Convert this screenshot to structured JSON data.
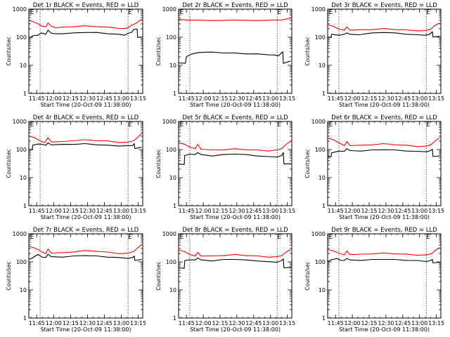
{
  "figure": {
    "xlabel": "Start Time (20-Oct-09 11:38:00)",
    "ylabel": "Counts/sec"
  },
  "chart_data": [
    {
      "type": "line",
      "title": "Det 1r BLACK = Events, RED = LLD",
      "xlabel": "Start Time (20-Oct-09 11:38:00)",
      "ylabel": "Counts/sec",
      "x_ticks": [
        "11:45",
        "12:00",
        "12:15",
        "12:30",
        "12:45",
        "13:00",
        "13:15"
      ],
      "x_tick_values": [
        7,
        22,
        37,
        52,
        67,
        82,
        97
      ],
      "y_ticks": [
        "1",
        "10",
        "100",
        "1000"
      ],
      "ylog": true,
      "ylim": [
        1,
        1000
      ],
      "xlim": [
        0,
        101
      ],
      "dotted_vlines": [
        10,
        88
      ],
      "markers": [
        "E",
        "E"
      ],
      "marker_x": [
        1,
        88
      ],
      "series": [
        {
          "name": "Events",
          "color": "#000000",
          "x": [
            0,
            2.5,
            3,
            8,
            11,
            15,
            17,
            20,
            24,
            30,
            40,
            50,
            60,
            70,
            80,
            85,
            88,
            91,
            93,
            96,
            96.5,
            100
          ],
          "y": [
            100,
            100,
            110,
            120,
            140,
            130,
            175,
            140,
            130,
            135,
            140,
            150,
            145,
            135,
            125,
            120,
            135,
            150,
            185,
            200,
            95,
            105
          ]
        },
        {
          "name": "LLD",
          "color": "#ff0000",
          "x": [
            0,
            3,
            8,
            11,
            15,
            17,
            20,
            24,
            30,
            40,
            50,
            60,
            70,
            80,
            85,
            88,
            91,
            95,
            100
          ],
          "y": [
            400,
            370,
            300,
            260,
            230,
            330,
            240,
            220,
            225,
            240,
            250,
            240,
            225,
            210,
            200,
            220,
            260,
            320,
            420
          ]
        }
      ]
    },
    {
      "type": "line",
      "title": "Det 2r BLACK = Events, RED = LLD",
      "xlabel": "Start Time (20-Oct-09 11:38:00)",
      "ylabel": "Counts/sec",
      "x_ticks": [
        "11:45",
        "12:00",
        "12:15",
        "12:30",
        "12:45",
        "13:00",
        "13:15"
      ],
      "x_tick_values": [
        7,
        22,
        37,
        52,
        67,
        82,
        97
      ],
      "y_ticks": [
        "1",
        "10",
        "100",
        "1000"
      ],
      "ylog": true,
      "ylim": [
        1,
        1000
      ],
      "xlim": [
        0,
        101
      ],
      "dotted_vlines": [
        10,
        88
      ],
      "markers": [
        "E",
        "E"
      ],
      "marker_x": [
        1,
        88
      ],
      "series": [
        {
          "name": "Events",
          "color": "#000000",
          "x": [
            0,
            6,
            7,
            12,
            18,
            24,
            30,
            40,
            50,
            60,
            70,
            80,
            85,
            89,
            93,
            93.5,
            100
          ],
          "y": [
            12,
            12,
            20,
            26,
            28,
            30,
            29,
            28,
            27,
            26,
            25,
            24,
            23,
            22,
            30,
            12,
            14
          ]
        },
        {
          "name": "LLD",
          "color": "#ff0000",
          "x": [
            0,
            8,
            15,
            30,
            50,
            70,
            85,
            92,
            100
          ],
          "y": [
            430,
            410,
            400,
            400,
            400,
            400,
            400,
            420,
            470
          ]
        }
      ]
    },
    {
      "type": "line",
      "title": "Det 3r BLACK = Events, RED = LLD",
      "xlabel": "Start Time (20-Oct-09 11:38:00)",
      "ylabel": "Counts/sec",
      "x_ticks": [
        "11:45",
        "12:00",
        "12:15",
        "12:30",
        "12:45",
        "13:00",
        "13:15"
      ],
      "x_tick_values": [
        7,
        22,
        37,
        52,
        67,
        82,
        97
      ],
      "y_ticks": [
        "1",
        "10",
        "100",
        "1000"
      ],
      "ylog": true,
      "ylim": [
        1,
        1000
      ],
      "xlim": [
        0,
        101
      ],
      "dotted_vlines": [
        10,
        88
      ],
      "markers": [
        "E",
        "E"
      ],
      "marker_x": [
        1,
        88
      ],
      "series": [
        {
          "name": "Events",
          "color": "#000000",
          "x": [
            0,
            3,
            3.5,
            10,
            15,
            17,
            20,
            28,
            40,
            50,
            60,
            70,
            80,
            87,
            91,
            93.5,
            94,
            100
          ],
          "y": [
            100,
            100,
            125,
            120,
            125,
            145,
            125,
            125,
            140,
            150,
            140,
            130,
            120,
            120,
            125,
            160,
            100,
            110
          ]
        },
        {
          "name": "LLD",
          "color": "#ff0000",
          "x": [
            0,
            5,
            10,
            15,
            17,
            20,
            28,
            40,
            50,
            60,
            70,
            80,
            88,
            92,
            96,
            100
          ],
          "y": [
            270,
            250,
            190,
            180,
            230,
            180,
            180,
            190,
            200,
            190,
            180,
            170,
            170,
            200,
            260,
            330
          ]
        }
      ]
    },
    {
      "type": "line",
      "title": "Det 4r BLACK = Events, RED = LLD",
      "xlabel": "Start Time (20-Oct-09 11:38:00)",
      "ylabel": "Counts/sec",
      "x_ticks": [
        "11:45",
        "12:00",
        "12:15",
        "12:30",
        "12:45",
        "13:00",
        "13:15"
      ],
      "x_tick_values": [
        7,
        22,
        37,
        52,
        67,
        82,
        97
      ],
      "y_ticks": [
        "1",
        "10",
        "100",
        "1000"
      ],
      "ylog": true,
      "ylim": [
        1,
        1000
      ],
      "xlim": [
        0,
        101
      ],
      "dotted_vlines": [
        10,
        88
      ],
      "markers": [
        "E",
        "E"
      ],
      "marker_x": [
        1,
        88
      ],
      "series": [
        {
          "name": "Events",
          "color": "#000000",
          "x": [
            0,
            3,
            3.5,
            8,
            12,
            15,
            17,
            20,
            30,
            40,
            50,
            60,
            70,
            80,
            88,
            92,
            93.5,
            94,
            100
          ],
          "y": [
            100,
            100,
            140,
            160,
            150,
            145,
            170,
            150,
            150,
            155,
            160,
            150,
            140,
            135,
            135,
            140,
            160,
            110,
            120
          ]
        },
        {
          "name": "LLD",
          "color": "#ff0000",
          "x": [
            0,
            5,
            10,
            14,
            17,
            20,
            30,
            40,
            50,
            60,
            70,
            80,
            88,
            93,
            97,
            100
          ],
          "y": [
            300,
            270,
            200,
            180,
            260,
            190,
            190,
            210,
            220,
            210,
            200,
            180,
            180,
            210,
            280,
            380
          ]
        }
      ]
    },
    {
      "type": "line",
      "title": "Det 5r BLACK = Events, RED = LLD",
      "xlabel": "Start Time (20-Oct-09 11:38:00)",
      "ylabel": "Counts/sec",
      "x_ticks": [
        "11:45",
        "12:00",
        "12:15",
        "12:30",
        "12:45",
        "13:00",
        "13:15"
      ],
      "x_tick_values": [
        7,
        22,
        37,
        52,
        67,
        82,
        97
      ],
      "y_ticks": [
        "1",
        "10",
        "100",
        "1000"
      ],
      "ylog": true,
      "ylim": [
        1,
        1000
      ],
      "xlim": [
        0,
        101
      ],
      "dotted_vlines": [
        10,
        88
      ],
      "markers": [
        "E",
        "E"
      ],
      "marker_x": [
        1,
        88
      ],
      "series": [
        {
          "name": "Events",
          "color": "#000000",
          "x": [
            0,
            5,
            5.5,
            10,
            15,
            17,
            20,
            30,
            40,
            50,
            60,
            70,
            80,
            88,
            92,
            93.5,
            94,
            100
          ],
          "y": [
            30,
            30,
            60,
            70,
            65,
            80,
            65,
            60,
            65,
            70,
            65,
            60,
            55,
            55,
            60,
            80,
            30,
            32
          ]
        },
        {
          "name": "LLD",
          "color": "#ff0000",
          "x": [
            0,
            5,
            10,
            15,
            17,
            20,
            30,
            40,
            50,
            60,
            70,
            80,
            88,
            92,
            96,
            100
          ],
          "y": [
            170,
            160,
            120,
            110,
            150,
            105,
            95,
            100,
            105,
            100,
            95,
            90,
            95,
            110,
            150,
            200
          ]
        }
      ]
    },
    {
      "type": "line",
      "title": "Det 6r BLACK = Events, RED = LLD",
      "xlabel": "Start Time (20-Oct-09 11:38:00)",
      "ylabel": "Counts/sec",
      "x_ticks": [
        "11:45",
        "12:00",
        "12:15",
        "12:30",
        "12:45",
        "13:00",
        "13:15"
      ],
      "x_tick_values": [
        7,
        22,
        37,
        52,
        67,
        82,
        97
      ],
      "y_ticks": [
        "1",
        "10",
        "100",
        "1000"
      ],
      "ylog": true,
      "ylim": [
        1,
        1000
      ],
      "xlim": [
        0,
        101
      ],
      "dotted_vlines": [
        10,
        88
      ],
      "markers": [
        "E",
        "E"
      ],
      "marker_x": [
        1,
        88
      ],
      "series": [
        {
          "name": "Events",
          "color": "#000000",
          "x": [
            0,
            3,
            3.5,
            10,
            15,
            17,
            20,
            30,
            40,
            50,
            60,
            70,
            80,
            88,
            92,
            93.5,
            94,
            100
          ],
          "y": [
            55,
            55,
            75,
            90,
            85,
            110,
            90,
            90,
            95,
            100,
            95,
            90,
            85,
            85,
            90,
            105,
            55,
            60
          ]
        },
        {
          "name": "LLD",
          "color": "#ff0000",
          "x": [
            0,
            5,
            10,
            15,
            17,
            20,
            30,
            40,
            50,
            60,
            70,
            80,
            88,
            92,
            96,
            100
          ],
          "y": [
            250,
            230,
            170,
            140,
            190,
            140,
            140,
            150,
            160,
            150,
            140,
            130,
            130,
            150,
            200,
            270
          ]
        }
      ]
    },
    {
      "type": "line",
      "title": "Det 7r BLACK = Events, RED = LLD",
      "xlabel": "Start Time (20-Oct-09 11:38:00)",
      "ylabel": "Counts/sec",
      "x_ticks": [
        "11:45",
        "12:00",
        "12:15",
        "12:30",
        "12:45",
        "13:00",
        "13:15"
      ],
      "x_tick_values": [
        7,
        22,
        37,
        52,
        67,
        82,
        97
      ],
      "y_ticks": [
        "1",
        "10",
        "100",
        "1000"
      ],
      "ylog": true,
      "ylim": [
        1,
        1000
      ],
      "xlim": [
        0,
        101
      ],
      "dotted_vlines": [
        10,
        88
      ],
      "markers": [
        "E",
        "E"
      ],
      "marker_x": [
        1,
        88
      ],
      "series": [
        {
          "name": "Events",
          "color": "#000000",
          "x": [
            0,
            3,
            8,
            12,
            15,
            17,
            20,
            30,
            40,
            50,
            60,
            70,
            80,
            88,
            92,
            93.5,
            94,
            100
          ],
          "y": [
            120,
            140,
            180,
            150,
            140,
            190,
            150,
            150,
            160,
            170,
            160,
            150,
            140,
            135,
            140,
            165,
            110,
            125
          ]
        },
        {
          "name": "LLD",
          "color": "#ff0000",
          "x": [
            0,
            5,
            10,
            15,
            17,
            20,
            30,
            40,
            50,
            60,
            70,
            80,
            88,
            93,
            97,
            100
          ],
          "y": [
            350,
            320,
            240,
            200,
            280,
            210,
            210,
            230,
            250,
            240,
            220,
            200,
            200,
            240,
            320,
            420
          ]
        }
      ]
    },
    {
      "type": "line",
      "title": "Det 8r BLACK = Events, RED = LLD",
      "xlabel": "Start Time (20-Oct-09 11:38:00)",
      "ylabel": "Counts/sec",
      "x_ticks": [
        "11:45",
        "12:00",
        "12:15",
        "12:30",
        "12:45",
        "13:00",
        "13:15"
      ],
      "x_tick_values": [
        7,
        22,
        37,
        52,
        67,
        82,
        97
      ],
      "y_ticks": [
        "1",
        "10",
        "100",
        "1000"
      ],
      "ylog": true,
      "ylim": [
        1,
        1000
      ],
      "xlim": [
        0,
        101
      ],
      "dotted_vlines": [
        10,
        88
      ],
      "markers": [
        "E",
        "E"
      ],
      "marker_x": [
        1,
        88
      ],
      "series": [
        {
          "name": "Events",
          "color": "#000000",
          "x": [
            0,
            5,
            5.5,
            10,
            15,
            17,
            20,
            30,
            40,
            50,
            60,
            70,
            80,
            88,
            92,
            93.5,
            94,
            100
          ],
          "y": [
            60,
            60,
            110,
            120,
            115,
            140,
            115,
            110,
            120,
            125,
            115,
            110,
            100,
            100,
            110,
            130,
            60,
            65
          ]
        },
        {
          "name": "LLD",
          "color": "#ff0000",
          "x": [
            0,
            5,
            10,
            15,
            17,
            20,
            30,
            40,
            50,
            60,
            70,
            80,
            88,
            92,
            96,
            100
          ],
          "y": [
            260,
            240,
            180,
            165,
            215,
            165,
            160,
            170,
            180,
            170,
            160,
            150,
            150,
            170,
            220,
            280
          ]
        }
      ]
    },
    {
      "type": "line",
      "title": "Det 9r BLACK = Events, RED = LLD",
      "xlabel": "Start Time (20-Oct-09 11:38:00)",
      "ylabel": "Counts/sec",
      "x_ticks": [
        "11:45",
        "12:00",
        "12:15",
        "12:30",
        "12:45",
        "13:00",
        "13:15"
      ],
      "x_tick_values": [
        7,
        22,
        37,
        52,
        67,
        82,
        97
      ],
      "y_ticks": [
        "1",
        "10",
        "100",
        "1000"
      ],
      "ylog": true,
      "ylim": [
        1,
        1000
      ],
      "xlim": [
        0,
        101
      ],
      "dotted_vlines": [
        10,
        88
      ],
      "markers": [
        "E",
        "E"
      ],
      "marker_x": [
        1,
        88
      ],
      "series": [
        {
          "name": "Events",
          "color": "#000000",
          "x": [
            0,
            3,
            8,
            12,
            15,
            17,
            20,
            30,
            40,
            50,
            60,
            70,
            80,
            88,
            92,
            93.5,
            94,
            100
          ],
          "y": [
            100,
            120,
            130,
            115,
            110,
            135,
            115,
            115,
            120,
            125,
            120,
            115,
            110,
            105,
            110,
            125,
            90,
            100
          ]
        },
        {
          "name": "LLD",
          "color": "#ff0000",
          "x": [
            0,
            5,
            10,
            15,
            17,
            20,
            30,
            40,
            50,
            60,
            70,
            80,
            88,
            93,
            97,
            100
          ],
          "y": [
            270,
            250,
            200,
            180,
            240,
            185,
            185,
            195,
            205,
            195,
            185,
            175,
            175,
            200,
            270,
            330
          ]
        }
      ]
    }
  ]
}
